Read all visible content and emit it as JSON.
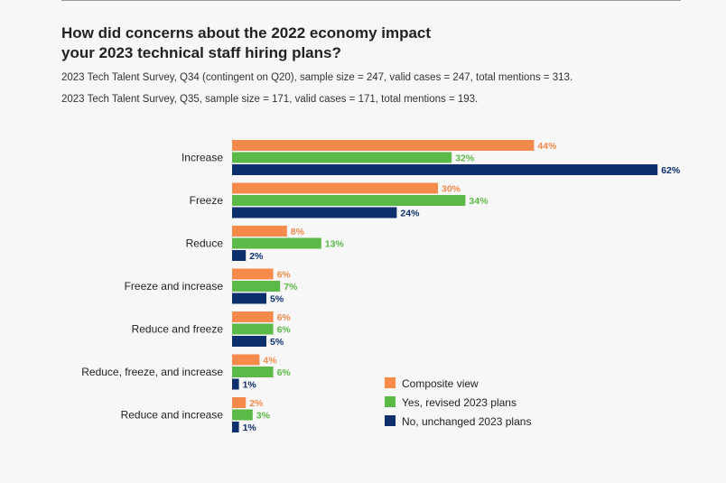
{
  "title": "How did concerns about the 2022 economy impact\nyour 2023 technical staff hiring plans?",
  "notes": [
    "2023 Tech Talent Survey, Q34 (contingent on Q20), sample size = 247, valid cases = 247, total mentions = 313.",
    "2023 Tech Talent Survey, Q35, sample size = 171, valid cases = 171, total mentions = 193."
  ],
  "chart_data": {
    "type": "bar",
    "orientation": "horizontal",
    "categories": [
      "Increase",
      "Freeze",
      "Reduce",
      "Freeze and increase",
      "Reduce and freeze",
      "Reduce, freeze, and increase",
      "Reduce and increase"
    ],
    "series": [
      {
        "name": "Composite view",
        "color": "#f58a4b",
        "values": [
          44,
          30,
          8,
          6,
          6,
          4,
          2
        ]
      },
      {
        "name": "Yes, revised 2023 plans",
        "color": "#5bb947",
        "values": [
          32,
          34,
          13,
          7,
          6,
          6,
          3
        ]
      },
      {
        "name": "No, unchanged 2023 plans",
        "color": "#0d2f6e",
        "values": [
          62,
          24,
          2,
          5,
          5,
          1,
          1
        ]
      }
    ],
    "value_suffix": "%",
    "legend_position": "bottom-right",
    "grid": false
  }
}
